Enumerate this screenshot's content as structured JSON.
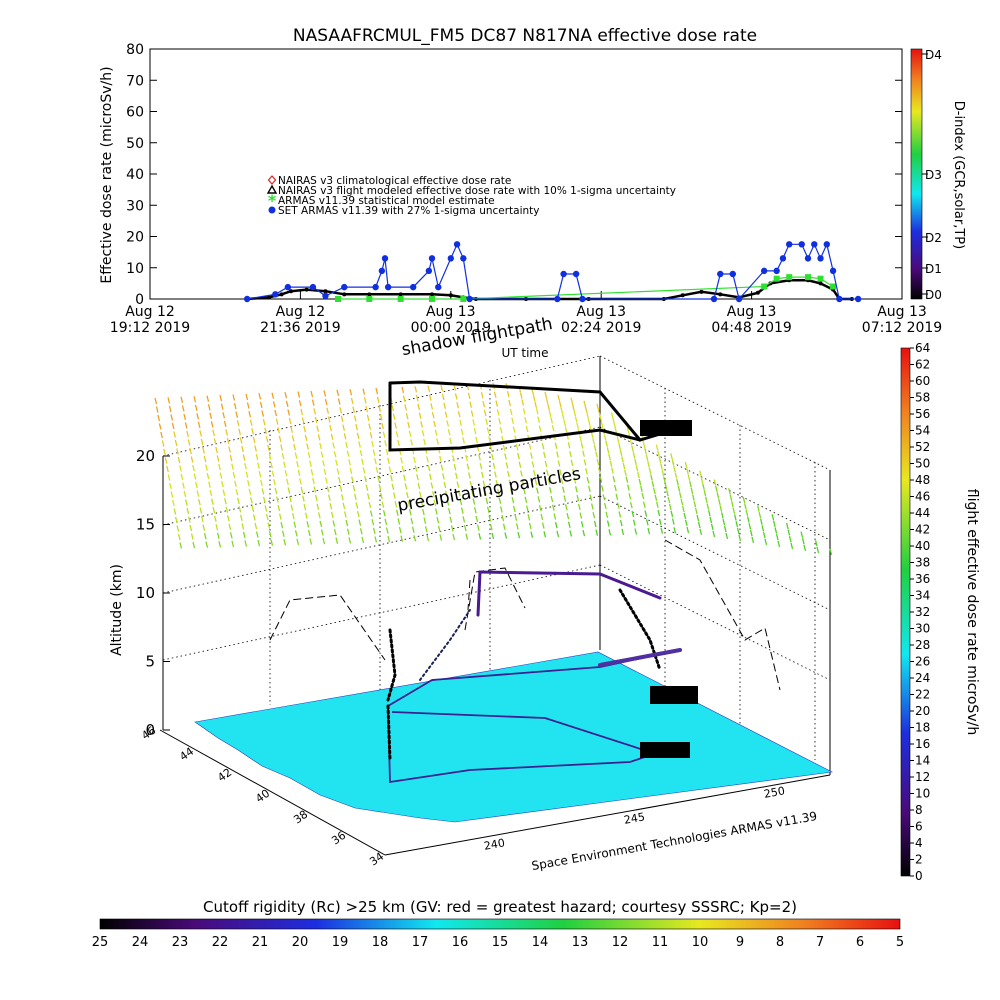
{
  "title": "NASAAFRCMUL_FM5 DC87 N817NA effective dose rate",
  "credit": "Space Environment Technologies ARMAS v11.39",
  "chart_data": [
    {
      "type": "line",
      "title": "NASAAFRCMUL_FM5 DC87 N817NA effective dose rate",
      "xlabel": "UT time",
      "ylabel": "Effective dose rate (microSv/h)",
      "ylim": [
        0,
        80
      ],
      "y_ticks": [
        0,
        10,
        20,
        30,
        40,
        50,
        60,
        70,
        80
      ],
      "x_ticks": [
        {
          "l1": "Aug 12",
          "l2": "19:12 2019"
        },
        {
          "l1": "Aug 12",
          "l2": "21:36 2019"
        },
        {
          "l1": "Aug 13",
          "l2": "00:00 2019"
        },
        {
          "l1": "Aug 13",
          "l2": "02:24 2019"
        },
        {
          "l1": "Aug 13",
          "l2": "04:48 2019"
        },
        {
          "l1": "Aug 13",
          "l2": "07:12 2019"
        }
      ],
      "x_hours_range": [
        0,
        12
      ],
      "legend": [
        {
          "label": "NAIRAS v3 climatological effective dose rate",
          "symbol": "diamond",
          "color": "#e0201c"
        },
        {
          "label": "NAIRAS v3 flight modeled effective dose rate with 10% 1-sigma uncertainty",
          "symbol": "triangle",
          "color": "#000000"
        },
        {
          "label": "ARMAS v11.39 statistical model estimate",
          "symbol": "star",
          "color": "#30e030"
        },
        {
          "label": "SET ARMAS v11.39 with 27% 1-sigma uncertainty",
          "symbol": "dot",
          "color": "#1030e0"
        }
      ],
      "legend_position": "center-left",
      "grid": false,
      "series": [
        {
          "name": "NAIRAS v3 flight modeled effective dose rate with 10% 1-sigma uncertainty",
          "color": "#000000",
          "points": [
            [
              1.55,
              0
            ],
            [
              1.9,
              0.5
            ],
            [
              2.1,
              1.5
            ],
            [
              2.25,
              2.5
            ],
            [
              2.5,
              3
            ],
            [
              2.8,
              2.5
            ],
            [
              3.1,
              1.5
            ],
            [
              3.5,
              1.5
            ],
            [
              4.0,
              1.5
            ],
            [
              4.5,
              1.5
            ],
            [
              4.8,
              1.2
            ],
            [
              5.0,
              0.5
            ],
            [
              5.2,
              0
            ],
            [
              6.0,
              0
            ],
            [
              7.0,
              0
            ],
            [
              8.2,
              0
            ],
            [
              8.5,
              1.2
            ],
            [
              8.8,
              2.3
            ],
            [
              9.1,
              1.5
            ],
            [
              9.4,
              0.5
            ],
            [
              9.7,
              2
            ],
            [
              9.9,
              5
            ],
            [
              10.2,
              6
            ],
            [
              10.5,
              6
            ],
            [
              10.7,
              5
            ],
            [
              10.9,
              3
            ],
            [
              11.0,
              0
            ],
            [
              11.2,
              0
            ]
          ]
        },
        {
          "name": "ARMAS v11.39 statistical model estimate",
          "color": "#30e030",
          "points": [
            [
              3.0,
              0
            ],
            [
              3.5,
              0
            ],
            [
              4.0,
              0
            ],
            [
              4.5,
              0
            ],
            [
              5.0,
              0
            ],
            [
              9.8,
              4
            ],
            [
              10.0,
              6.5
            ],
            [
              10.2,
              7
            ],
            [
              10.5,
              7
            ],
            [
              10.7,
              6.5
            ],
            [
              10.9,
              4
            ]
          ]
        },
        {
          "name": "SET ARMAS v11.39 with 27% 1-sigma uncertainty",
          "color": "#1030e0",
          "points": [
            [
              1.55,
              0
            ],
            [
              2.0,
              1.5
            ],
            [
              2.2,
              3.8
            ],
            [
              2.6,
              3.8
            ],
            [
              2.8,
              1
            ],
            [
              3.1,
              3.8
            ],
            [
              3.6,
              3.8
            ],
            [
              3.7,
              9
            ],
            [
              3.75,
              13
            ],
            [
              3.8,
              3.8
            ],
            [
              4.2,
              3.8
            ],
            [
              4.45,
              9
            ],
            [
              4.5,
              13
            ],
            [
              4.6,
              3.8
            ],
            [
              4.8,
              13
            ],
            [
              4.9,
              17.5
            ],
            [
              5.0,
              13
            ],
            [
              5.1,
              0
            ],
            [
              6.5,
              0
            ],
            [
              6.6,
              8
            ],
            [
              6.8,
              8
            ],
            [
              6.9,
              0
            ],
            [
              9.0,
              0
            ],
            [
              9.1,
              8
            ],
            [
              9.3,
              8
            ],
            [
              9.4,
              0
            ],
            [
              9.8,
              9
            ],
            [
              10.0,
              9
            ],
            [
              10.1,
              13
            ],
            [
              10.2,
              17.5
            ],
            [
              10.4,
              17.5
            ],
            [
              10.5,
              13
            ],
            [
              10.6,
              17.5
            ],
            [
              10.7,
              13
            ],
            [
              10.8,
              17.5
            ],
            [
              10.9,
              9
            ],
            [
              11.0,
              0
            ],
            [
              11.3,
              0
            ]
          ]
        }
      ]
    },
    {
      "type": "other",
      "title": "shadow flightpath",
      "annotations": [
        "shadow flightpath",
        "precipitating particles"
      ],
      "zlabel": "Altitude (km)",
      "z_ticks": [
        0,
        5,
        10,
        15,
        20
      ],
      "lat_ticks": [
        46,
        44,
        42,
        40,
        38,
        36,
        34
      ],
      "lon_ticks": [
        240,
        245,
        250
      ],
      "colorbar_label": "flight effective dose rate microSv/h",
      "colorbar_range": [
        0,
        64
      ],
      "colorbar_ticks": [
        0,
        2,
        4,
        6,
        8,
        10,
        12,
        14,
        16,
        18,
        20,
        22,
        24,
        26,
        28,
        30,
        32,
        34,
        36,
        38,
        40,
        42,
        44,
        46,
        48,
        50,
        52,
        54,
        56,
        58,
        60,
        62,
        64
      ],
      "ground_color": "#22e4f0"
    }
  ],
  "dindex_bar": {
    "label": "D-index (GCR,solar,TP)",
    "levels": [
      "D0",
      "D1",
      "D2",
      "D3",
      "D4"
    ]
  },
  "rc_bar": {
    "label": "Cutoff rigidity (Rc) >25 km (GV: red = greatest hazard; courtesy SSSRC; Kp=2)",
    "ticks": [
      "25",
      "24",
      "23",
      "22",
      "21",
      "20",
      "19",
      "18",
      "17",
      "16",
      "15",
      "14",
      "13",
      "12",
      "11",
      "10",
      "9",
      "8",
      "7",
      "6",
      "5"
    ]
  }
}
